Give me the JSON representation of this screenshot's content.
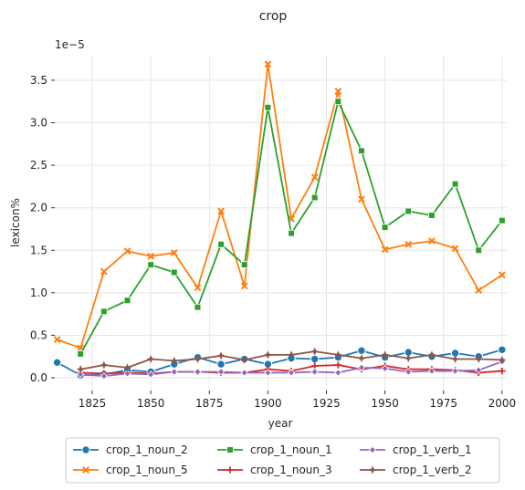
{
  "chart_data": {
    "type": "line",
    "title": "crop",
    "xlabel": "year",
    "ylabel": "lexicon%",
    "y_offset_label": "1e−5",
    "xlim": [
      1809,
      2002
    ],
    "ylim": [
      -0.15,
      3.8
    ],
    "x_ticks": [
      1825,
      1850,
      1875,
      1900,
      1925,
      1950,
      1975,
      2000
    ],
    "y_ticks": [
      0.0,
      0.5,
      1.0,
      1.5,
      2.0,
      2.5,
      3.0,
      3.5
    ],
    "grid": true,
    "legend_position": "bottom",
    "x": [
      1810,
      1820,
      1830,
      1840,
      1850,
      1860,
      1870,
      1880,
      1890,
      1900,
      1910,
      1920,
      1930,
      1940,
      1950,
      1960,
      1970,
      1980,
      1990,
      2000
    ],
    "series": [
      {
        "name": "crop_1_noun_2",
        "color": "#1f77b4",
        "marker": "circle",
        "x": [
          1810,
          1820,
          1830,
          1840,
          1850,
          1860,
          1870,
          1880,
          1890,
          1900,
          1910,
          1920,
          1930,
          1940,
          1950,
          1960,
          1970,
          1980,
          1990,
          2000
        ],
        "values": [
          0.18,
          0.03,
          0.04,
          0.09,
          0.07,
          0.16,
          0.24,
          0.16,
          0.22,
          0.16,
          0.23,
          0.22,
          0.24,
          0.32,
          0.24,
          0.3,
          0.25,
          0.29,
          0.25,
          0.33
        ]
      },
      {
        "name": "crop_1_noun_5",
        "color": "#ff7f0e",
        "marker": "x",
        "x": [
          1810,
          1820,
          1830,
          1840,
          1850,
          1860,
          1870,
          1880,
          1890,
          1900,
          1910,
          1920,
          1930,
          1940,
          1950,
          1960,
          1970,
          1980,
          1990,
          2000
        ],
        "values": [
          0.45,
          0.35,
          1.25,
          1.49,
          1.43,
          1.47,
          1.06,
          1.96,
          1.08,
          3.69,
          1.87,
          2.36,
          3.37,
          2.1,
          1.51,
          1.57,
          1.61,
          1.52,
          1.03,
          1.21
        ]
      },
      {
        "name": "crop_1_noun_1",
        "color": "#2ca02c",
        "marker": "square",
        "x": [
          1820,
          1830,
          1840,
          1850,
          1860,
          1870,
          1880,
          1890,
          1900,
          1910,
          1920,
          1930,
          1940,
          1950,
          1960,
          1970,
          1980,
          1990,
          2000
        ],
        "values": [
          0.28,
          0.78,
          0.91,
          1.33,
          1.24,
          0.83,
          1.57,
          1.33,
          3.18,
          1.7,
          2.12,
          3.25,
          2.67,
          1.77,
          1.96,
          1.91,
          2.28,
          1.5,
          1.85
        ]
      },
      {
        "name": "crop_1_noun_3",
        "color": "#d62728",
        "marker": "plus",
        "x": [
          1820,
          1830,
          1840,
          1850,
          1860,
          1870,
          1880,
          1890,
          1900,
          1910,
          1920,
          1930,
          1940,
          1950,
          1960,
          1970,
          1980,
          1990,
          2000
        ],
        "values": [
          0.06,
          0.05,
          0.06,
          0.05,
          0.07,
          0.07,
          0.06,
          0.06,
          0.1,
          0.08,
          0.14,
          0.15,
          0.1,
          0.14,
          0.1,
          0.1,
          0.09,
          0.06,
          0.08
        ]
      },
      {
        "name": "crop_1_verb_1",
        "color": "#9467bd",
        "marker": "diamond",
        "x": [
          1820,
          1830,
          1840,
          1850,
          1860,
          1870,
          1880,
          1890,
          1900,
          1910,
          1920,
          1930,
          1940,
          1950,
          1960,
          1970,
          1980,
          1990,
          2000
        ],
        "values": [
          0.04,
          0.02,
          0.05,
          0.04,
          0.07,
          0.07,
          0.07,
          0.06,
          0.06,
          0.06,
          0.07,
          0.06,
          0.12,
          0.11,
          0.07,
          0.08,
          0.08,
          0.09,
          0.19
        ]
      },
      {
        "name": "crop_1_verb_2",
        "color": "#8c564b",
        "marker": "star",
        "x": [
          1820,
          1830,
          1840,
          1850,
          1860,
          1870,
          1880,
          1890,
          1900,
          1910,
          1920,
          1930,
          1940,
          1950,
          1960,
          1970,
          1980,
          1990,
          2000
        ],
        "values": [
          0.1,
          0.15,
          0.12,
          0.22,
          0.2,
          0.22,
          0.26,
          0.21,
          0.27,
          0.27,
          0.31,
          0.27,
          0.23,
          0.27,
          0.23,
          0.27,
          0.22,
          0.22,
          0.21
        ]
      }
    ]
  }
}
